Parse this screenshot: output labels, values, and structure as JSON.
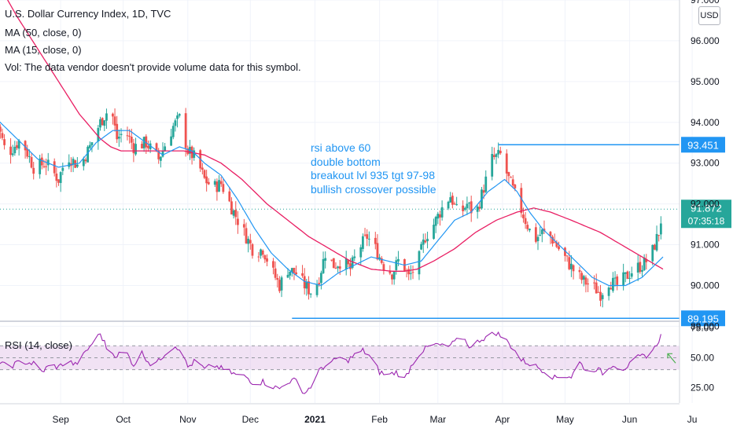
{
  "legend": {
    "title": "U.S. Dollar Currency Index, 1D, TVC",
    "ma50": "MA (50, close, 0)",
    "ma15": "MA (15, close, 0)",
    "vol": "Vol: The data vendor doesn't provide volume data for this symbol."
  },
  "currency_button": "USD",
  "annotation": [
    "rsi above 60",
    "double bottom",
    "breakout lvl 935 tgt 97-98",
    "bullish crossover possible"
  ],
  "rsi_label": "RSI (14, close)",
  "colors": {
    "up": "#26a69a",
    "down": "#ef5350",
    "ma50": "#e91e63",
    "ma15": "#2196f3",
    "level": "#2196f3",
    "rsi": "#9c27b0",
    "rsi_band": "#e1bee7",
    "price_tag": "#26a69a"
  },
  "chart_data": {
    "type": "candlestick",
    "price_axis": {
      "ylim": [
        89.2,
        97.0
      ],
      "ticks": [
        "97.000",
        "96.000",
        "95.000",
        "94.000",
        "93.000",
        "92.000",
        "91.000",
        "90.000",
        "89.000"
      ]
    },
    "rsi_axis": {
      "ylim": [
        12,
        80
      ],
      "ticks": [
        "75.00",
        "50.00",
        "25.00"
      ],
      "band": [
        40,
        60
      ]
    },
    "x_labels": [
      "Sep",
      "Oct",
      "Nov",
      "Dec",
      "2021",
      "Feb",
      "Mar",
      "Apr",
      "May",
      "Jun",
      "Ju"
    ],
    "x_label_days": [
      31,
      61,
      92,
      122,
      153,
      184,
      212,
      243,
      273,
      304,
      334
    ],
    "first_day": "2020-08-01",
    "price_anchors": [
      [
        0,
        94.1
      ],
      [
        5,
        93.2
      ],
      [
        12,
        93.6
      ],
      [
        18,
        92.9
      ],
      [
        24,
        93.0
      ],
      [
        30,
        92.6
      ],
      [
        34,
        93.2
      ],
      [
        40,
        92.9
      ],
      [
        45,
        93.4
      ],
      [
        50,
        94.0
      ],
      [
        55,
        94.4
      ],
      [
        58,
        93.6
      ],
      [
        62,
        93.8
      ],
      [
        66,
        93.4
      ],
      [
        72,
        93.5
      ],
      [
        78,
        93.1
      ],
      [
        85,
        93.9
      ],
      [
        88,
        94.1
      ],
      [
        92,
        93.3
      ],
      [
        96,
        93.1
      ],
      [
        100,
        92.6
      ],
      [
        104,
        92.4
      ],
      [
        108,
        92.5
      ],
      [
        114,
        91.8
      ],
      [
        120,
        91.2
      ],
      [
        124,
        90.8
      ],
      [
        128,
        90.9
      ],
      [
        132,
        90.4
      ],
      [
        136,
        90.0
      ],
      [
        140,
        90.4
      ],
      [
        144,
        90.3
      ],
      [
        148,
        90.0
      ],
      [
        150,
        89.9
      ],
      [
        152,
        89.8
      ],
      [
        155,
        90.2
      ],
      [
        158,
        90.8
      ],
      [
        162,
        90.5
      ],
      [
        166,
        90.6
      ],
      [
        170,
        90.4
      ],
      [
        174,
        90.9
      ],
      [
        178,
        91.2
      ],
      [
        182,
        90.9
      ],
      [
        186,
        90.5
      ],
      [
        190,
        90.3
      ],
      [
        194,
        90.7
      ],
      [
        198,
        90.2
      ],
      [
        202,
        90.5
      ],
      [
        206,
        91.2
      ],
      [
        210,
        91.5
      ],
      [
        214,
        91.9
      ],
      [
        218,
        92.2
      ],
      [
        222,
        91.7
      ],
      [
        226,
        92.0
      ],
      [
        230,
        91.7
      ],
      [
        234,
        92.4
      ],
      [
        238,
        93.1
      ],
      [
        242,
        93.2
      ],
      [
        246,
        92.6
      ],
      [
        250,
        92.1
      ],
      [
        254,
        91.6
      ],
      [
        258,
        91.1
      ],
      [
        262,
        91.3
      ],
      [
        266,
        91.2
      ],
      [
        270,
        90.9
      ],
      [
        274,
        90.6
      ],
      [
        278,
        90.3
      ],
      [
        282,
        90.1
      ],
      [
        286,
        90.0
      ],
      [
        290,
        89.8
      ],
      [
        294,
        90.1
      ],
      [
        298,
        90.0
      ],
      [
        302,
        90.2
      ],
      [
        306,
        90.4
      ],
      [
        310,
        90.5
      ],
      [
        314,
        90.7
      ],
      [
        318,
        91.3
      ],
      [
        320,
        91.9
      ]
    ],
    "rsi_anchors": [
      [
        0,
        47
      ],
      [
        6,
        42
      ],
      [
        12,
        47
      ],
      [
        18,
        45
      ],
      [
        22,
        38
      ],
      [
        26,
        44
      ],
      [
        30,
        42
      ],
      [
        34,
        48
      ],
      [
        38,
        44
      ],
      [
        42,
        52
      ],
      [
        46,
        62
      ],
      [
        50,
        70
      ],
      [
        54,
        55
      ],
      [
        58,
        52
      ],
      [
        62,
        56
      ],
      [
        66,
        44
      ],
      [
        70,
        54
      ],
      [
        74,
        45
      ],
      [
        78,
        47
      ],
      [
        82,
        56
      ],
      [
        86,
        60
      ],
      [
        88,
        58
      ],
      [
        92,
        42
      ],
      [
        96,
        48
      ],
      [
        100,
        40
      ],
      [
        104,
        44
      ],
      [
        108,
        41
      ],
      [
        112,
        38
      ],
      [
        116,
        35
      ],
      [
        120,
        34
      ],
      [
        124,
        28
      ],
      [
        128,
        30
      ],
      [
        132,
        26
      ],
      [
        136,
        24
      ],
      [
        140,
        30
      ],
      [
        144,
        31
      ],
      [
        148,
        20
      ],
      [
        152,
        28
      ],
      [
        156,
        42
      ],
      [
        160,
        44
      ],
      [
        164,
        50
      ],
      [
        168,
        47
      ],
      [
        172,
        52
      ],
      [
        176,
        56
      ],
      [
        180,
        50
      ],
      [
        184,
        38
      ],
      [
        188,
        35
      ],
      [
        192,
        38
      ],
      [
        196,
        32
      ],
      [
        200,
        46
      ],
      [
        204,
        55
      ],
      [
        208,
        60
      ],
      [
        212,
        61
      ],
      [
        216,
        58
      ],
      [
        220,
        63
      ],
      [
        224,
        67
      ],
      [
        228,
        58
      ],
      [
        232,
        65
      ],
      [
        236,
        68
      ],
      [
        240,
        71
      ],
      [
        244,
        66
      ],
      [
        248,
        58
      ],
      [
        252,
        48
      ],
      [
        256,
        45
      ],
      [
        260,
        42
      ],
      [
        264,
        38
      ],
      [
        268,
        33
      ],
      [
        272,
        35
      ],
      [
        276,
        34
      ],
      [
        280,
        46
      ],
      [
        284,
        38
      ],
      [
        288,
        41
      ],
      [
        292,
        36
      ],
      [
        296,
        45
      ],
      [
        300,
        40
      ],
      [
        304,
        44
      ],
      [
        308,
        50
      ],
      [
        312,
        52
      ],
      [
        316,
        58
      ],
      [
        320,
        72
      ]
    ],
    "ma50_anchors": [
      [
        0,
        97.5
      ],
      [
        10,
        96.6
      ],
      [
        20,
        95.8
      ],
      [
        30,
        95.0
      ],
      [
        40,
        94.2
      ],
      [
        50,
        93.6
      ],
      [
        55,
        93.4
      ],
      [
        60,
        93.3
      ],
      [
        75,
        93.3
      ],
      [
        90,
        93.3
      ],
      [
        100,
        93.2
      ],
      [
        108,
        93.0
      ],
      [
        118,
        92.6
      ],
      [
        130,
        92.0
      ],
      [
        140,
        91.6
      ],
      [
        150,
        91.2
      ],
      [
        160,
        90.9
      ],
      [
        170,
        90.6
      ],
      [
        180,
        90.4
      ],
      [
        190,
        90.35
      ],
      [
        196,
        90.35
      ],
      [
        202,
        90.4
      ],
      [
        210,
        90.6
      ],
      [
        220,
        90.9
      ],
      [
        230,
        91.3
      ],
      [
        240,
        91.6
      ],
      [
        250,
        91.8
      ],
      [
        258,
        91.9
      ],
      [
        266,
        91.8
      ],
      [
        276,
        91.6
      ],
      [
        290,
        91.3
      ],
      [
        300,
        91.0
      ],
      [
        310,
        90.7
      ],
      [
        320,
        90.4
      ]
    ],
    "ma15_anchors": [
      [
        0,
        94.1
      ],
      [
        10,
        93.6
      ],
      [
        20,
        93.1
      ],
      [
        30,
        92.9
      ],
      [
        40,
        93.0
      ],
      [
        48,
        93.5
      ],
      [
        56,
        93.8
      ],
      [
        64,
        93.8
      ],
      [
        72,
        93.5
      ],
      [
        80,
        93.2
      ],
      [
        88,
        93.4
      ],
      [
        94,
        93.3
      ],
      [
        100,
        93.0
      ],
      [
        108,
        92.7
      ],
      [
        116,
        92.1
      ],
      [
        124,
        91.4
      ],
      [
        132,
        90.8
      ],
      [
        140,
        90.4
      ],
      [
        148,
        90.1
      ],
      [
        156,
        90.0
      ],
      [
        164,
        90.3
      ],
      [
        172,
        90.5
      ],
      [
        180,
        90.7
      ],
      [
        188,
        90.6
      ],
      [
        196,
        90.5
      ],
      [
        204,
        90.6
      ],
      [
        212,
        91.1
      ],
      [
        220,
        91.6
      ],
      [
        228,
        91.8
      ],
      [
        236,
        92.3
      ],
      [
        244,
        92.6
      ],
      [
        250,
        92.3
      ],
      [
        256,
        91.8
      ],
      [
        262,
        91.4
      ],
      [
        270,
        91.0
      ],
      [
        278,
        90.6
      ],
      [
        286,
        90.2
      ],
      [
        294,
        90.0
      ],
      [
        302,
        90.0
      ],
      [
        310,
        90.2
      ],
      [
        316,
        90.5
      ],
      [
        320,
        90.7
      ]
    ],
    "levels": [
      {
        "value": 93.451,
        "label": "93.451",
        "x_start_day": 241
      },
      {
        "value": 89.195,
        "label": "89.195",
        "x_start_day": 142
      }
    ],
    "current": {
      "price_label": "91.872",
      "value": 91.872,
      "timer": "07:35:18"
    }
  }
}
